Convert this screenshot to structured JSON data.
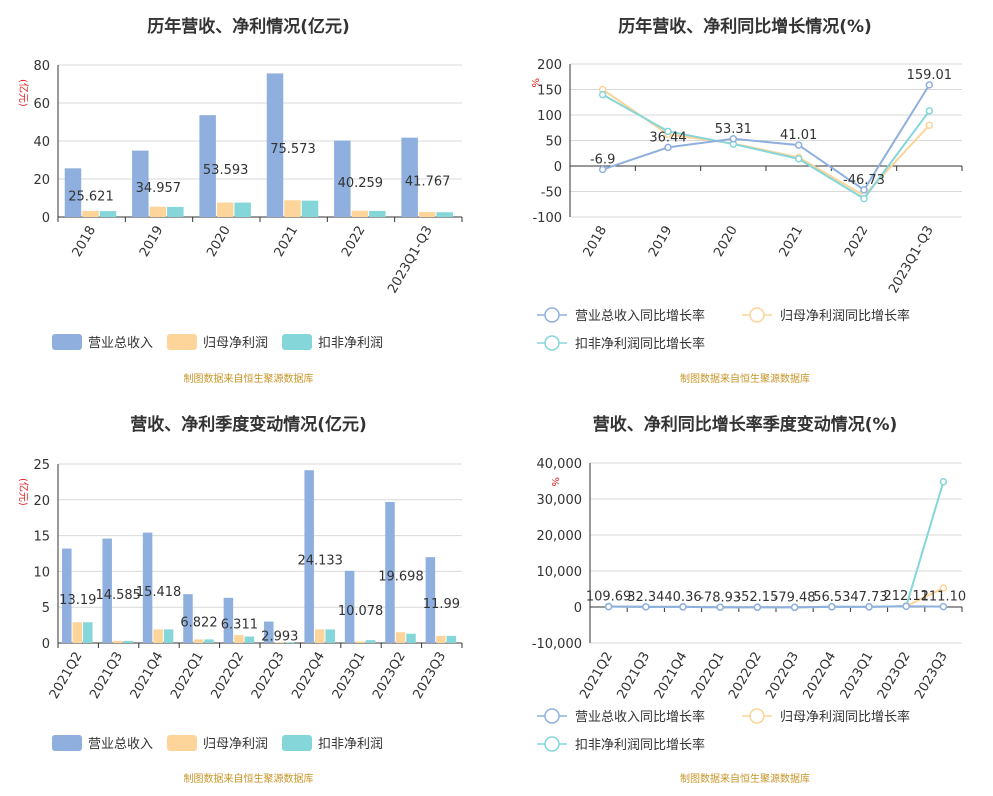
{
  "source_note": "制图数据来自恒生聚源数据库",
  "legend_bar": [
    "营业总收入",
    "归母净利润",
    "扣非净利润"
  ],
  "legend_line": [
    "营业总收入同比增长率",
    "归母净利润同比增长率",
    "扣非净利润同比增长率"
  ],
  "colors": {
    "rev": "#8fb0de",
    "np": "#fdd49a",
    "dnp": "#85d6d9"
  },
  "chart_data": [
    {
      "type": "bar",
      "title": "历年营收、净利情况(亿元)",
      "ylabel": "(亿元)",
      "ylim": [
        0,
        80
      ],
      "yticks": [
        "0",
        "20",
        "40",
        "60",
        "80"
      ],
      "categories": [
        "2018",
        "2019",
        "2020",
        "2021",
        "2022",
        "2023Q1-Q3"
      ],
      "series": [
        {
          "name": "营业总收入",
          "values": [
            25.621,
            34.957,
            53.593,
            75.573,
            40.259,
            41.767
          ]
        },
        {
          "name": "归母净利润",
          "values": [
            3.2,
            5.4,
            7.6,
            8.8,
            3.3,
            2.6
          ]
        },
        {
          "name": "扣非净利润",
          "values": [
            3.1,
            5.3,
            7.6,
            8.6,
            3.2,
            2.5
          ]
        }
      ],
      "data_labels": [
        "25.621",
        "34.957",
        "53.593",
        "75.573",
        "40.259",
        "41.767"
      ]
    },
    {
      "type": "line",
      "title": "历年营收、净利同比增长情况(%)",
      "ylabel": "%",
      "ylim": [
        -100,
        200
      ],
      "yticks": [
        "-100",
        "-50",
        "0",
        "50",
        "100",
        "150",
        "200"
      ],
      "categories": [
        "2018",
        "2019",
        "2020",
        "2021",
        "2022",
        "2023Q1-Q3"
      ],
      "series": [
        {
          "name": "营业总收入同比增长率",
          "values": [
            -6.9,
            36.44,
            53.31,
            41.01,
            -46.73,
            159.01
          ]
        },
        {
          "name": "归母净利润同比增长率",
          "values": [
            150,
            62,
            44,
            17,
            -58,
            80
          ]
        },
        {
          "name": "扣非净利润同比增长率",
          "values": [
            140,
            68,
            43,
            14,
            -64,
            108
          ]
        }
      ],
      "data_labels": [
        "-6.9",
        "36.44",
        "53.31",
        "41.01",
        "-46.73",
        "159.01"
      ]
    },
    {
      "type": "bar",
      "title": "营收、净利季度变动情况(亿元)",
      "ylabel": "(亿元)",
      "ylim": [
        0,
        25
      ],
      "yticks": [
        "0",
        "5",
        "10",
        "15",
        "20",
        "25"
      ],
      "categories": [
        "2021Q2",
        "2021Q3",
        "2021Q4",
        "2022Q1",
        "2022Q2",
        "2022Q3",
        "2022Q4",
        "2023Q1",
        "2023Q2",
        "2023Q3"
      ],
      "series": [
        {
          "name": "营业总收入",
          "values": [
            13.19,
            14.585,
            15.418,
            6.822,
            6.311,
            2.993,
            24.133,
            10.078,
            19.698,
            11.99
          ]
        },
        {
          "name": "归母净利润",
          "values": [
            2.9,
            0.3,
            1.9,
            0.5,
            1.1,
            0.1,
            1.9,
            0.2,
            1.5,
            1.0
          ]
        },
        {
          "name": "扣非净利润",
          "values": [
            2.9,
            0.3,
            1.9,
            0.5,
            0.9,
            0.1,
            1.9,
            0.4,
            1.3,
            1.0
          ]
        }
      ],
      "data_labels": [
        "13.19",
        "14.585",
        "15.418",
        "6.822",
        "6.311",
        "2.993",
        "24.133",
        "10.078",
        "19.698",
        "11.99"
      ]
    },
    {
      "type": "line",
      "title": "营收、净利同比增长率季度变动情况(%)",
      "ylabel": "%",
      "ylim": [
        -10000,
        40000
      ],
      "yticks": [
        "-10,000",
        "0",
        "10,000",
        "20,000",
        "30,000",
        "40,000"
      ],
      "categories": [
        "2021Q2",
        "2021Q3",
        "2021Q4",
        "2022Q1",
        "2022Q2",
        "2022Q3",
        "2022Q4",
        "2023Q1",
        "2023Q2",
        "2023Q3"
      ],
      "series": [
        {
          "name": "营业总收入同比增长率",
          "values": [
            109.69,
            32.34,
            40.36,
            -78.93,
            -52.15,
            -79.48,
            56.53,
            47.73,
            212.12,
            111.1
          ]
        },
        {
          "name": "归母净利润同比增长率",
          "values": [
            150,
            20,
            30,
            -90,
            -60,
            -95,
            40,
            30,
            200,
            5300
          ]
        },
        {
          "name": "扣非净利润同比增长率",
          "values": [
            160,
            25,
            30,
            -85,
            -70,
            -98,
            30,
            40,
            250,
            34800
          ]
        }
      ],
      "data_labels": [
        "109.69",
        "32.34",
        "40.36",
        "-78.93",
        "-52.15",
        "-79.48",
        "56.53",
        "47.73",
        "212.12",
        "111.10"
      ]
    }
  ]
}
